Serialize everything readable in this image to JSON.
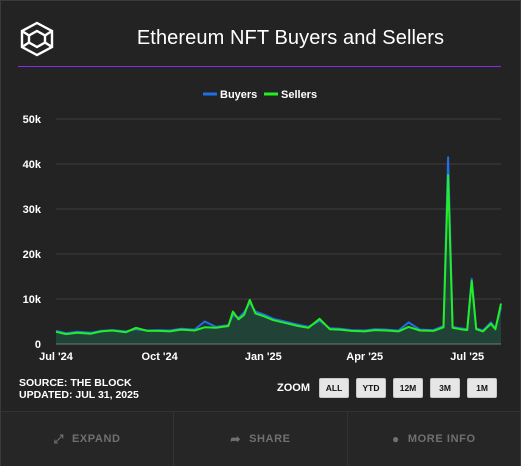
{
  "header": {
    "title": "Ethereum NFT Buyers and Sellers",
    "logo_icon": "the-block-cube-logo"
  },
  "footnote": {
    "source": "SOURCE: THE BLOCK",
    "updated": "UPDATED: JUL 31, 2025"
  },
  "zoom": {
    "label": "ZOOM",
    "options": [
      "ALL",
      "YTD",
      "12M",
      "3M",
      "1M"
    ]
  },
  "footer": {
    "expand": "EXPAND",
    "expand_icon": "expand-arrows-icon",
    "share": "SHARE",
    "share_icon": "share-arrow-icon",
    "more_info": "MORE INFO",
    "more_info_icon": "info-circle-icon"
  },
  "chart_data": {
    "type": "area",
    "x_ticks": [
      "Jul '24",
      "Oct '24",
      "Jan '25",
      "Apr '25",
      "Jul '25"
    ],
    "y_ticks": [
      "0",
      "10k",
      "20k",
      "30k",
      "40k",
      "50k"
    ],
    "ylim": [
      0,
      50000
    ],
    "grid": true,
    "legend_position": "top-center",
    "series": [
      {
        "name": "Buyers",
        "color": "#1f6fe5",
        "points": [
          [
            "2024-07-01",
            2900
          ],
          [
            "2024-07-10",
            2400
          ],
          [
            "2024-07-20",
            2700
          ],
          [
            "2024-08-01",
            2500
          ],
          [
            "2024-08-10",
            2900
          ],
          [
            "2024-08-20",
            3100
          ],
          [
            "2024-09-01",
            2800
          ],
          [
            "2024-09-10",
            3300
          ],
          [
            "2024-09-20",
            3000
          ],
          [
            "2024-10-01",
            3100
          ],
          [
            "2024-10-10",
            3000
          ],
          [
            "2024-10-20",
            3400
          ],
          [
            "2024-11-01",
            3200
          ],
          [
            "2024-11-10",
            5000
          ],
          [
            "2024-11-20",
            3800
          ],
          [
            "2024-12-01",
            4200
          ],
          [
            "2024-12-05",
            6500
          ],
          [
            "2024-12-10",
            5800
          ],
          [
            "2024-12-15",
            7000
          ],
          [
            "2024-12-20",
            9200
          ],
          [
            "2024-12-25",
            7200
          ],
          [
            "2025-01-01",
            6600
          ],
          [
            "2025-01-10",
            5600
          ],
          [
            "2025-01-20",
            5000
          ],
          [
            "2025-02-01",
            4300
          ],
          [
            "2025-02-10",
            3800
          ],
          [
            "2025-02-20",
            5200
          ],
          [
            "2025-03-01",
            3500
          ],
          [
            "2025-03-10",
            3400
          ],
          [
            "2025-03-20",
            3100
          ],
          [
            "2025-04-01",
            3000
          ],
          [
            "2025-04-10",
            3300
          ],
          [
            "2025-04-20",
            3200
          ],
          [
            "2025-05-01",
            3000
          ],
          [
            "2025-05-10",
            4800
          ],
          [
            "2025-05-20",
            3200
          ],
          [
            "2025-06-01",
            3100
          ],
          [
            "2025-06-10",
            4000
          ],
          [
            "2025-06-14",
            41500
          ],
          [
            "2025-06-18",
            3800
          ],
          [
            "2025-06-25",
            3500
          ],
          [
            "2025-07-01",
            3300
          ],
          [
            "2025-07-05",
            14500
          ],
          [
            "2025-07-09",
            3500
          ],
          [
            "2025-07-15",
            3000
          ],
          [
            "2025-07-22",
            4800
          ],
          [
            "2025-07-26",
            3500
          ],
          [
            "2025-07-31",
            8200
          ]
        ]
      },
      {
        "name": "Sellers",
        "color": "#22ee22",
        "points": [
          [
            "2024-07-01",
            2700
          ],
          [
            "2024-07-10",
            2200
          ],
          [
            "2024-07-20",
            2500
          ],
          [
            "2024-08-01",
            2300
          ],
          [
            "2024-08-10",
            2800
          ],
          [
            "2024-08-20",
            3000
          ],
          [
            "2024-09-01",
            2600
          ],
          [
            "2024-09-10",
            3600
          ],
          [
            "2024-09-20",
            2900
          ],
          [
            "2024-10-01",
            2900
          ],
          [
            "2024-10-10",
            2800
          ],
          [
            "2024-10-20",
            3200
          ],
          [
            "2024-11-01",
            3000
          ],
          [
            "2024-11-10",
            3700
          ],
          [
            "2024-11-20",
            3600
          ],
          [
            "2024-12-01",
            4000
          ],
          [
            "2024-12-05",
            7200
          ],
          [
            "2024-12-10",
            5500
          ],
          [
            "2024-12-15",
            6500
          ],
          [
            "2024-12-20",
            9800
          ],
          [
            "2024-12-25",
            6800
          ],
          [
            "2025-01-01",
            6200
          ],
          [
            "2025-01-10",
            5300
          ],
          [
            "2025-01-20",
            4700
          ],
          [
            "2025-02-01",
            4000
          ],
          [
            "2025-02-10",
            3600
          ],
          [
            "2025-02-20",
            5600
          ],
          [
            "2025-03-01",
            3300
          ],
          [
            "2025-03-10",
            3200
          ],
          [
            "2025-03-20",
            2900
          ],
          [
            "2025-04-01",
            2800
          ],
          [
            "2025-04-10",
            3100
          ],
          [
            "2025-04-20",
            3000
          ],
          [
            "2025-05-01",
            2800
          ],
          [
            "2025-05-10",
            3800
          ],
          [
            "2025-05-20",
            3000
          ],
          [
            "2025-06-01",
            2900
          ],
          [
            "2025-06-10",
            3700
          ],
          [
            "2025-06-14",
            37500
          ],
          [
            "2025-06-18",
            3600
          ],
          [
            "2025-06-25",
            3300
          ],
          [
            "2025-07-01",
            3100
          ],
          [
            "2025-07-05",
            14000
          ],
          [
            "2025-07-09",
            3300
          ],
          [
            "2025-07-15",
            2800
          ],
          [
            "2025-07-22",
            4500
          ],
          [
            "2025-07-26",
            3300
          ],
          [
            "2025-07-31",
            9000
          ]
        ]
      }
    ]
  }
}
